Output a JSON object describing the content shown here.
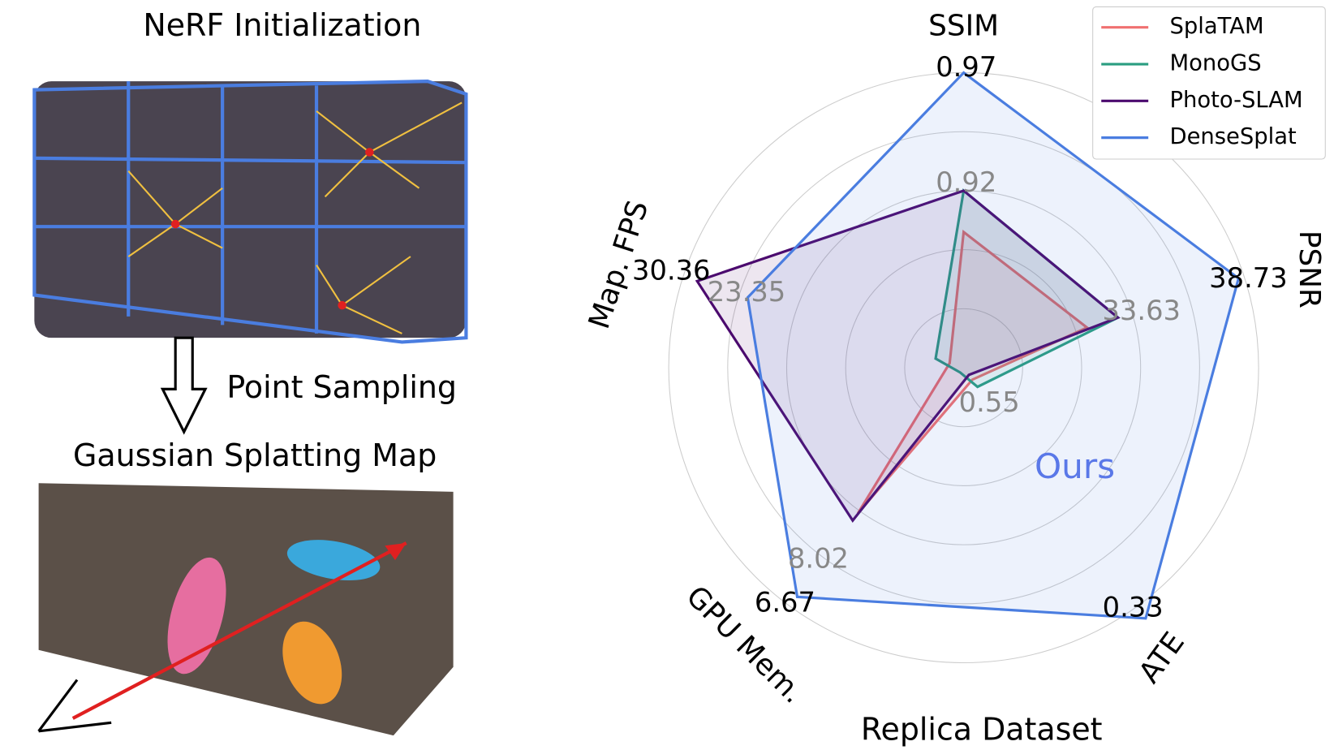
{
  "illustration": {
    "labels": [
      "NeRF Initialization",
      "Point Sampling",
      "Gaussian Splatting Map"
    ]
  },
  "chart_data": {
    "type": "radar",
    "title": "Replica Dataset",
    "categories": [
      "SSIM",
      "PSNR",
      "ATE",
      "GPU Mem.",
      "Map. FPS"
    ],
    "series": [
      {
        "name": "SplaTAM",
        "color": "#f07070",
        "values": [
          0.46,
          0.44,
          0.05,
          0.61,
          0.05
        ]
      },
      {
        "name": "MonoGS",
        "color": "#2a9d80",
        "values": [
          0.6,
          0.55,
          0.08,
          0.02,
          0.1
        ]
      },
      {
        "name": "Photo-SLAM",
        "color": "#4b0a6e",
        "values": [
          0.6,
          0.55,
          0.03,
          0.64,
          0.95
        ]
      },
      {
        "name": "DenseSplat",
        "color": "#4a7de0",
        "values": [
          1.0,
          0.98,
          1.05,
          0.96,
          0.77
        ]
      }
    ],
    "rlim": [
      0,
      1
    ],
    "rticks": [
      0.2,
      0.4,
      0.6,
      0.8,
      1.0
    ],
    "grid": true,
    "annotations": [
      "0.97",
      "0.92",
      "38.73",
      "33.63",
      "0.33",
      "0.55",
      "6.67",
      "8.02",
      "30.36",
      "23.35",
      "Ours"
    ],
    "legend": "upper right"
  }
}
